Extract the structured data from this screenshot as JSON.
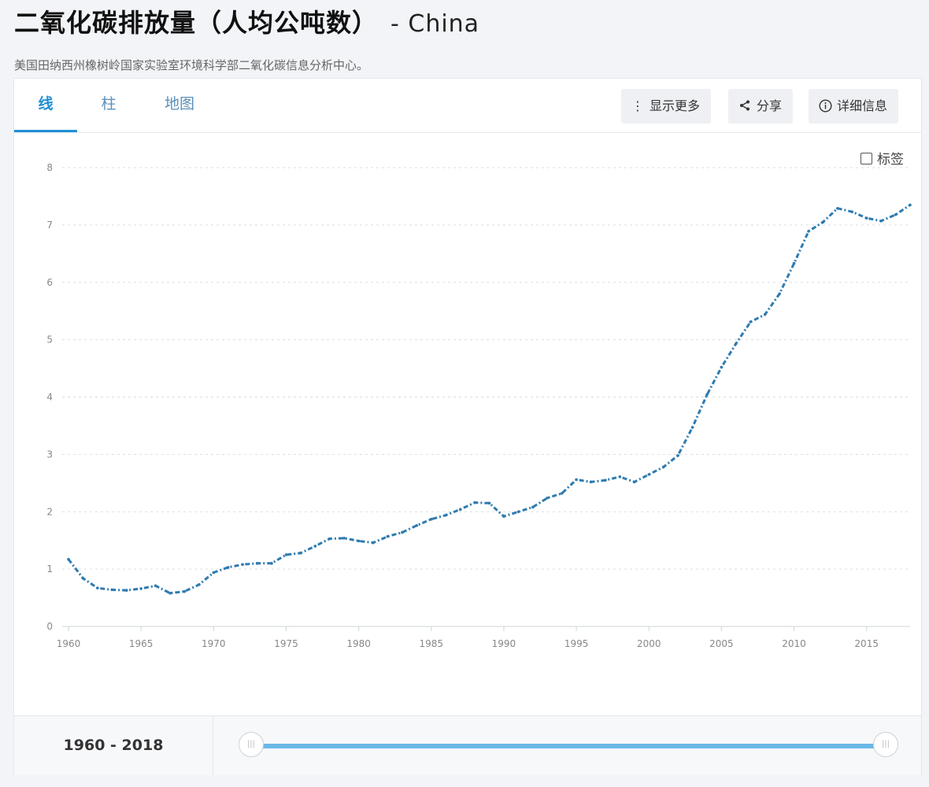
{
  "header": {
    "title": "二氧化碳排放量（人均公吨数）",
    "country": "- China",
    "source": "美国田纳西州橡树岭国家实验室环境科学部二氧化碳信息分析中心。"
  },
  "tabs": [
    "线",
    "柱",
    "地图"
  ],
  "buttons": {
    "more": "显示更多",
    "share": "分享",
    "details": "详细信息"
  },
  "labels_toggle": "标签",
  "range": {
    "label": "1960 - 2018",
    "start": 1960,
    "end": 2018
  },
  "colors": {
    "line": "#2e7bb0",
    "accent": "#1f8fd6",
    "slider": "#6bb8e8"
  },
  "chart_data": {
    "type": "line",
    "xlim": [
      1960,
      2018
    ],
    "ylim": [
      0,
      8
    ],
    "xticks": [
      1960,
      1965,
      1970,
      1975,
      1980,
      1985,
      1990,
      1995,
      2000,
      2005,
      2010,
      2015
    ],
    "yticks": [
      0,
      1,
      2,
      3,
      4,
      5,
      6,
      7,
      8
    ],
    "grid": true,
    "series": [
      {
        "x": [
          1960,
          1961,
          1962,
          1963,
          1964,
          1965,
          1966,
          1967,
          1968,
          1969,
          1970,
          1971,
          1972,
          1973,
          1974,
          1975,
          1976,
          1977,
          1978,
          1979,
          1980,
          1981,
          1982,
          1983,
          1984,
          1985,
          1986,
          1987,
          1988,
          1989,
          1990,
          1991,
          1992,
          1993,
          1994,
          1995,
          1996,
          1997,
          1998,
          1999,
          2000,
          2001,
          2002,
          2003,
          2004,
          2005,
          2006,
          2007,
          2008,
          2009,
          2010,
          2011,
          2012,
          2013,
          2014,
          2015,
          2016,
          2017,
          2018
        ],
        "values": [
          1.17,
          0.84,
          0.67,
          0.64,
          0.63,
          0.66,
          0.71,
          0.58,
          0.61,
          0.73,
          0.94,
          1.03,
          1.08,
          1.1,
          1.1,
          1.25,
          1.28,
          1.4,
          1.53,
          1.54,
          1.49,
          1.46,
          1.57,
          1.64,
          1.76,
          1.87,
          1.94,
          2.04,
          2.16,
          2.15,
          1.92,
          2.0,
          2.08,
          2.24,
          2.32,
          2.56,
          2.52,
          2.55,
          2.61,
          2.52,
          2.65,
          2.78,
          2.98,
          3.47,
          4.04,
          4.52,
          4.93,
          5.31,
          5.44,
          5.8,
          6.33,
          6.89,
          7.05,
          7.29,
          7.23,
          7.12,
          7.07,
          7.18,
          7.35
        ]
      }
    ]
  }
}
